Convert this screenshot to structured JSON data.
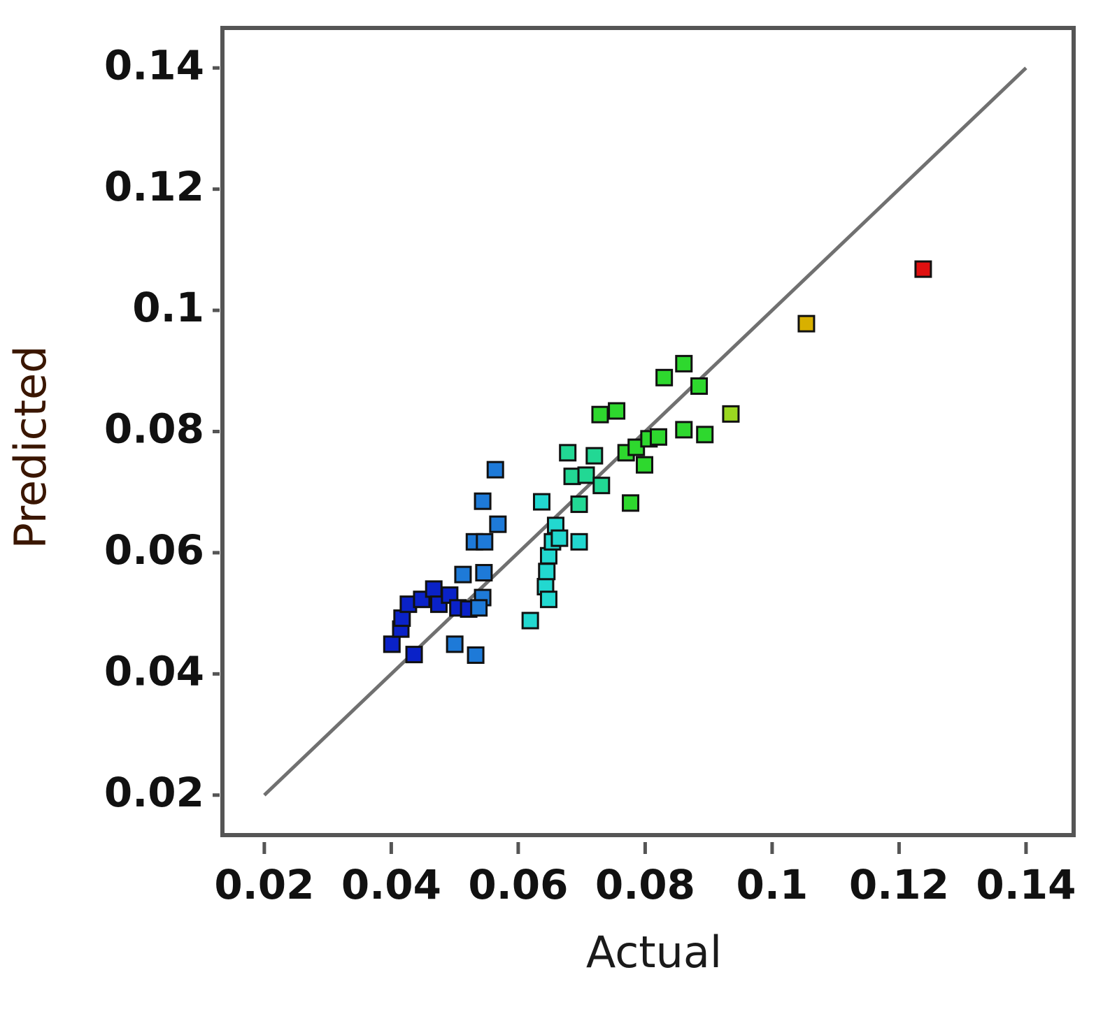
{
  "chart_data": {
    "type": "scatter",
    "x_label": "Actual",
    "y_label": "Predicted",
    "x": [
      0.0401,
      0.0436,
      0.0415,
      0.0417,
      0.0427,
      0.0448,
      0.0467,
      0.0475,
      0.0492,
      0.0505,
      0.0522,
      0.05,
      0.0533,
      0.0513,
      0.0531,
      0.0546,
      0.0544,
      0.0544,
      0.0564,
      0.0568,
      0.0547,
      0.0538,
      0.0619,
      0.0637,
      0.0643,
      0.0645,
      0.0648,
      0.0648,
      0.0654,
      0.0659,
      0.0665,
      0.0696,
      0.0678,
      0.0685,
      0.0696,
      0.0707,
      0.072,
      0.0731,
      0.0729,
      0.0755,
      0.0777,
      0.077,
      0.0786,
      0.0799,
      0.0806,
      0.0821,
      0.083,
      0.0861,
      0.0885,
      0.0861,
      0.0894,
      0.0935,
      0.1054,
      0.1238
    ],
    "y": [
      0.0449,
      0.0432,
      0.0474,
      0.0492,
      0.0515,
      0.0523,
      0.054,
      0.0515,
      0.053,
      0.0509,
      0.0507,
      0.0449,
      0.0431,
      0.0564,
      0.0618,
      0.0567,
      0.0526,
      0.0685,
      0.0737,
      0.0647,
      0.0618,
      0.0509,
      0.0488,
      0.0684,
      0.0544,
      0.0569,
      0.0523,
      0.0595,
      0.0618,
      0.0645,
      0.0624,
      0.0618,
      0.0765,
      0.0726,
      0.068,
      0.0728,
      0.076,
      0.0711,
      0.0828,
      0.0834,
      0.0682,
      0.0765,
      0.0774,
      0.0745,
      0.0788,
      0.0791,
      0.0889,
      0.0912,
      0.0875,
      0.0803,
      0.0795,
      0.0829,
      0.0978,
      0.1068
    ],
    "colors": [
      "#0a22c8",
      "#0a22c8",
      "#0a22c8",
      "#0a22c8",
      "#0a22c8",
      "#0a22c8",
      "#0a22c8",
      "#0a22c8",
      "#0a22c8",
      "#0a22c8",
      "#0a22c8",
      "#1e7ad8",
      "#1e7ad8",
      "#1e7ad8",
      "#1e7ad8",
      "#1e7ad8",
      "#1e7ad8",
      "#1e7ad8",
      "#1e7ad8",
      "#1e7ad8",
      "#1e7ad8",
      "#1e7ad8",
      "#22d8d0",
      "#22d8d0",
      "#22d8d0",
      "#22d8d0",
      "#22d8d0",
      "#22d8d0",
      "#22d8d0",
      "#22d8d0",
      "#22d8d0",
      "#22d8d0",
      "#22d894",
      "#22d894",
      "#22d894",
      "#22d894",
      "#22d894",
      "#22d894",
      "#2ed82e",
      "#2ed82e",
      "#2ed82e",
      "#2ed82e",
      "#2ed82e",
      "#2ed82e",
      "#2ed82e",
      "#2ed82e",
      "#2ed82e",
      "#2ed82e",
      "#2ed82e",
      "#2ed82e",
      "#2ed82e",
      "#9ad820",
      "#d8b000",
      "#e01010"
    ],
    "reference_line": {
      "x": [
        0.02,
        0.14
      ],
      "y": [
        0.02,
        0.14
      ],
      "color": "#707070"
    },
    "xlim": [
      0.0134,
      0.1475
    ],
    "ylim": [
      0.0134,
      0.1466
    ],
    "xticks": [
      0.02,
      0.04,
      0.06,
      0.08,
      0.1,
      0.12,
      0.14
    ],
    "yticks": [
      0.02,
      0.04,
      0.06,
      0.08,
      0.1,
      0.12,
      0.14
    ],
    "grid": false
  }
}
